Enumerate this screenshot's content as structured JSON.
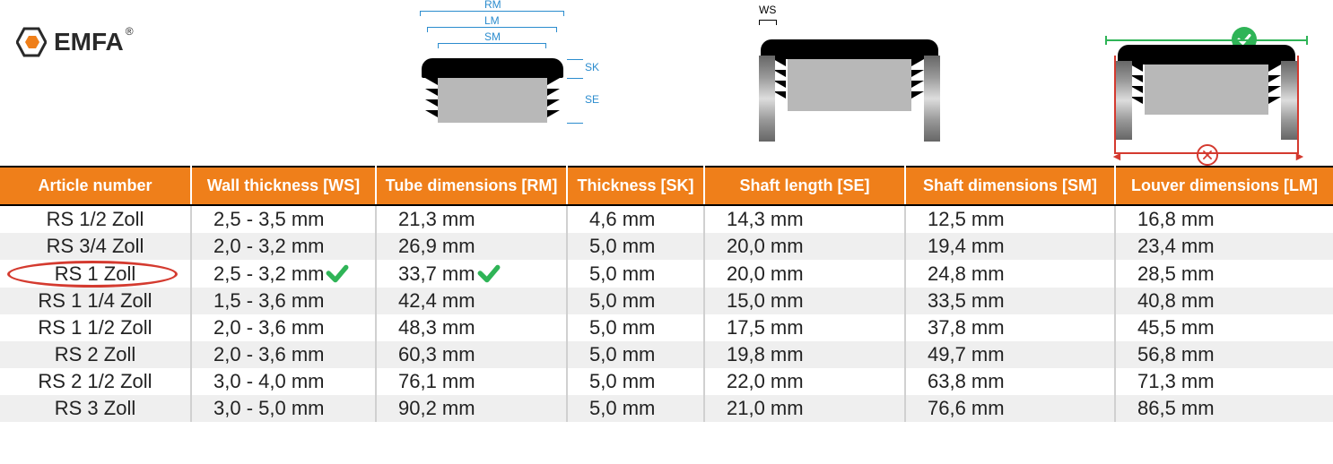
{
  "logo": {
    "text": "EMFA",
    "accent_hex": "#ef7f1a"
  },
  "diagrams": {
    "labels": {
      "RM": "RM",
      "LM": "LM",
      "SM": "SM",
      "SK": "SK",
      "SE": "SE",
      "WS": "WS"
    },
    "dim_color": "#2b8cce",
    "cap_black": "#000000",
    "cap_fill": "#b8b8b8",
    "ok_color": "#2fb457",
    "bad_color": "#d43a2f"
  },
  "table": {
    "header_bg": "#ef7f1a",
    "header_fg": "#ffffff",
    "row_alt_bg": "#efefef",
    "highlight_row_index": 2,
    "check_col_indices": [
      1,
      2
    ],
    "columns": [
      "Article number",
      "Wall thickness [WS]",
      "Tube dimensions [RM]",
      "Thickness [SK]",
      "Shaft length [SE]",
      "Shaft dimensions [SM]",
      "Louver dimensions [LM]"
    ],
    "rows": [
      [
        "RS 1/2 Zoll",
        "2,5 - 3,5 mm",
        "21,3 mm",
        "4,6 mm",
        "14,3 mm",
        "12,5 mm",
        "16,8 mm"
      ],
      [
        "RS 3/4 Zoll",
        "2,0 - 3,2 mm",
        "26,9 mm",
        "5,0 mm",
        "20,0 mm",
        "19,4 mm",
        "23,4 mm"
      ],
      [
        "RS 1 Zoll",
        "2,5 - 3,2 mm",
        "33,7 mm",
        "5,0 mm",
        "20,0 mm",
        "24,8 mm",
        "28,5 mm"
      ],
      [
        "RS 1 1/4 Zoll",
        "1,5 - 3,6 mm",
        "42,4 mm",
        "5,0 mm",
        "15,0 mm",
        "33,5 mm",
        "40,8 mm"
      ],
      [
        "RS 1 1/2 Zoll",
        "2,0 - 3,6 mm",
        "48,3 mm",
        "5,0 mm",
        "17,5 mm",
        "37,8 mm",
        "45,5 mm"
      ],
      [
        "RS 2 Zoll",
        "2,0 - 3,6 mm",
        "60,3 mm",
        "5,0 mm",
        "19,8 mm",
        "49,7 mm",
        "56,8 mm"
      ],
      [
        "RS 2 1/2 Zoll",
        "3,0 - 4,0 mm",
        "76,1 mm",
        "5,0 mm",
        "22,0 mm",
        "63,8 mm",
        "71,3 mm"
      ],
      [
        "RS 3 Zoll",
        "3,0 - 5,0 mm",
        "90,2 mm",
        "5,0 mm",
        "21,0 mm",
        "76,6 mm",
        "86,5 mm"
      ]
    ]
  }
}
